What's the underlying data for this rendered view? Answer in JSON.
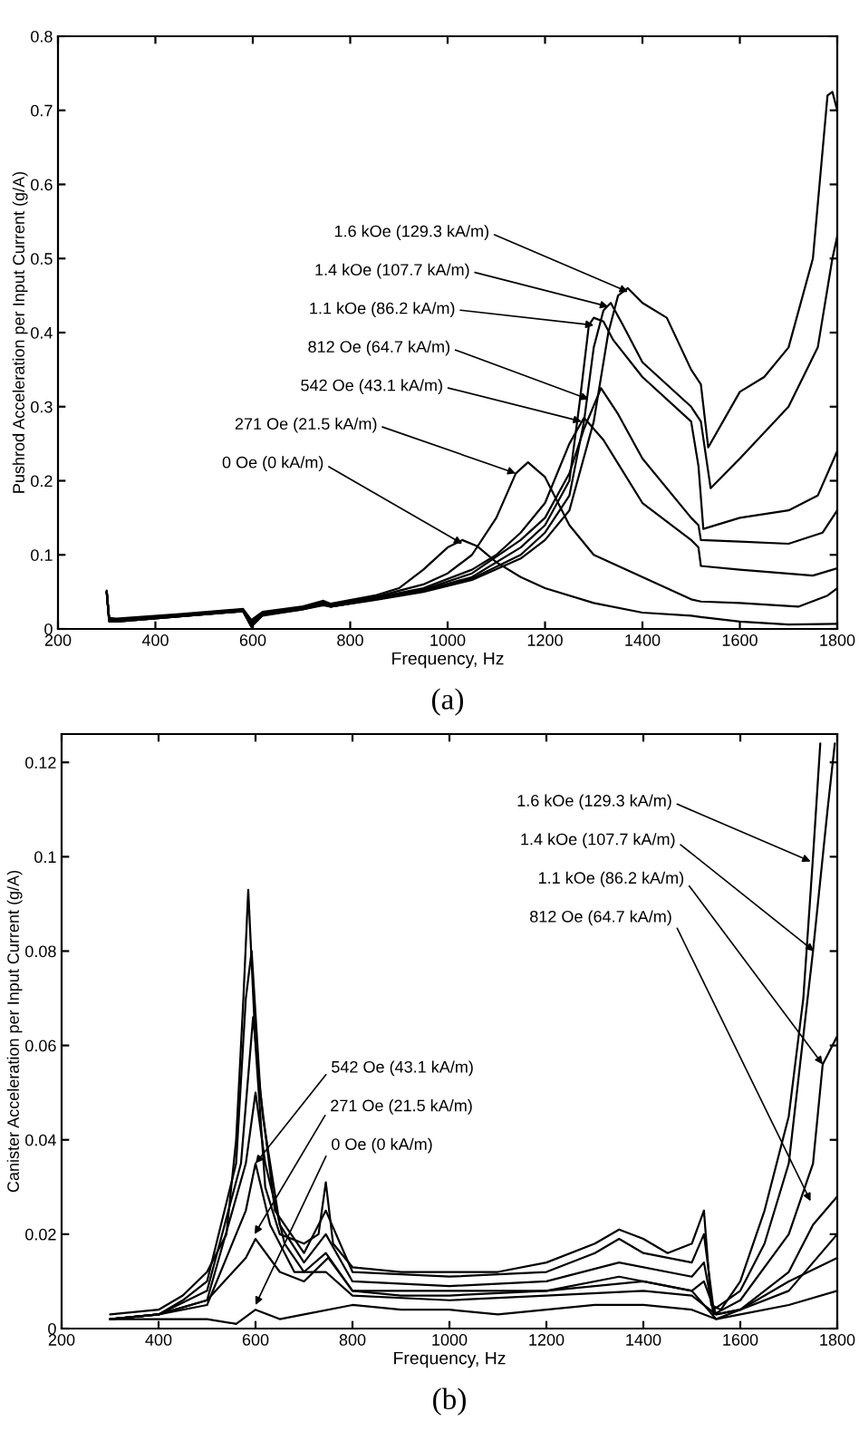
{
  "chart_data": [
    {
      "type": "line",
      "title": "(a)",
      "xlabel": "Frequency, Hz",
      "ylabel": "Pushrod Acceleration per Input Current (g/A)",
      "xlim": [
        200,
        1800
      ],
      "xticks": [
        200,
        400,
        600,
        800,
        1000,
        1200,
        1400,
        1600,
        1800
      ],
      "ylim": [
        0,
        0.8
      ],
      "yticks": [
        0,
        0.1,
        0.2,
        0.3,
        0.4,
        0.5,
        0.6,
        0.7,
        0.8
      ],
      "grid": false,
      "legend": false,
      "series": [
        {
          "color": "#000000",
          "x": [
            300,
            305,
            320,
            450,
            580,
            597,
            620,
            700,
            745,
            760,
            850,
            900,
            950,
            1000,
            1030,
            1060,
            1100,
            1150,
            1200,
            1300,
            1400,
            1500,
            1520,
            1600,
            1700,
            1800
          ],
          "values": [
            0.052,
            0.015,
            0.014,
            0.02,
            0.027,
            0.012,
            0.023,
            0.03,
            0.038,
            0.034,
            0.045,
            0.055,
            0.08,
            0.11,
            0.12,
            0.112,
            0.09,
            0.07,
            0.055,
            0.035,
            0.022,
            0.018,
            0.016,
            0.01,
            0.006,
            0.007
          ]
        },
        {
          "color": "#000000",
          "x": [
            300,
            305,
            320,
            450,
            580,
            597,
            620,
            700,
            745,
            760,
            850,
            950,
            1000,
            1050,
            1100,
            1140,
            1165,
            1200,
            1250,
            1300,
            1400,
            1500,
            1520,
            1600,
            1720,
            1780,
            1800
          ],
          "values": [
            0.05,
            0.014,
            0.013,
            0.019,
            0.026,
            0.009,
            0.022,
            0.029,
            0.036,
            0.033,
            0.043,
            0.06,
            0.075,
            0.1,
            0.15,
            0.21,
            0.225,
            0.205,
            0.14,
            0.1,
            0.07,
            0.04,
            0.037,
            0.035,
            0.03,
            0.045,
            0.055
          ]
        },
        {
          "color": "#000000",
          "x": [
            300,
            305,
            320,
            450,
            580,
            597,
            620,
            700,
            745,
            760,
            850,
            950,
            1050,
            1100,
            1150,
            1200,
            1250,
            1280,
            1320,
            1400,
            1500,
            1515,
            1520,
            1600,
            1750,
            1800
          ],
          "values": [
            0.05,
            0.013,
            0.012,
            0.018,
            0.025,
            0.007,
            0.021,
            0.028,
            0.035,
            0.032,
            0.042,
            0.055,
            0.08,
            0.1,
            0.13,
            0.17,
            0.25,
            0.285,
            0.255,
            0.17,
            0.12,
            0.11,
            0.085,
            0.08,
            0.072,
            0.082
          ]
        },
        {
          "color": "#000000",
          "x": [
            300,
            305,
            320,
            450,
            580,
            597,
            620,
            700,
            745,
            760,
            850,
            950,
            1050,
            1150,
            1200,
            1250,
            1280,
            1315,
            1350,
            1400,
            1500,
            1515,
            1520,
            1600,
            1700,
            1770,
            1800
          ],
          "values": [
            0.05,
            0.012,
            0.011,
            0.018,
            0.025,
            0.006,
            0.02,
            0.027,
            0.034,
            0.031,
            0.041,
            0.053,
            0.075,
            0.12,
            0.15,
            0.21,
            0.27,
            0.325,
            0.29,
            0.23,
            0.15,
            0.14,
            0.12,
            0.118,
            0.115,
            0.13,
            0.16
          ]
        },
        {
          "color": "#000000",
          "x": [
            300,
            305,
            320,
            450,
            580,
            597,
            620,
            700,
            745,
            760,
            850,
            950,
            1050,
            1150,
            1200,
            1250,
            1270,
            1290,
            1300,
            1320,
            1340,
            1400,
            1500,
            1515,
            1525,
            1600,
            1700,
            1760,
            1800
          ],
          "values": [
            0.05,
            0.011,
            0.01,
            0.017,
            0.024,
            0.004,
            0.019,
            0.027,
            0.033,
            0.03,
            0.04,
            0.052,
            0.07,
            0.11,
            0.14,
            0.2,
            0.3,
            0.41,
            0.42,
            0.415,
            0.39,
            0.34,
            0.28,
            0.22,
            0.135,
            0.15,
            0.16,
            0.18,
            0.24
          ]
        },
        {
          "color": "#000000",
          "x": [
            300,
            305,
            320,
            450,
            580,
            597,
            620,
            700,
            745,
            760,
            850,
            950,
            1050,
            1150,
            1200,
            1250,
            1280,
            1300,
            1320,
            1335,
            1360,
            1400,
            1450,
            1500,
            1520,
            1540,
            1600,
            1700,
            1760,
            1790,
            1800
          ],
          "values": [
            0.05,
            0.011,
            0.01,
            0.017,
            0.024,
            0.003,
            0.019,
            0.026,
            0.033,
            0.03,
            0.04,
            0.051,
            0.068,
            0.1,
            0.13,
            0.18,
            0.28,
            0.38,
            0.43,
            0.44,
            0.41,
            0.36,
            0.33,
            0.3,
            0.28,
            0.19,
            0.23,
            0.3,
            0.38,
            0.5,
            0.53
          ]
        },
        {
          "color": "#000000",
          "x": [
            300,
            305,
            320,
            450,
            580,
            597,
            620,
            700,
            745,
            760,
            850,
            950,
            1050,
            1150,
            1200,
            1250,
            1300,
            1330,
            1350,
            1370,
            1400,
            1450,
            1500,
            1520,
            1535,
            1600,
            1650,
            1700,
            1750,
            1780,
            1790,
            1800
          ],
          "values": [
            0.05,
            0.01,
            0.01,
            0.017,
            0.024,
            0.003,
            0.018,
            0.026,
            0.032,
            0.03,
            0.039,
            0.05,
            0.066,
            0.095,
            0.12,
            0.16,
            0.28,
            0.4,
            0.45,
            0.46,
            0.44,
            0.42,
            0.35,
            0.33,
            0.245,
            0.32,
            0.34,
            0.38,
            0.5,
            0.72,
            0.725,
            0.7
          ]
        }
      ],
      "annotations": [
        {
          "text": "1.6 kOe (129.3 kA/m)",
          "x": 1370,
          "y": 0.455
        },
        {
          "text": "1.4 kOe (107.7 kA/m)",
          "x": 1330,
          "y": 0.435
        },
        {
          "text": "1.1 kOe (86.2 kA/m)",
          "x": 1300,
          "y": 0.41
        },
        {
          "text": "812 Oe (64.7 kA/m)",
          "x": 1290,
          "y": 0.31
        },
        {
          "text": "542 Oe (43.1 kA/m)",
          "x": 1275,
          "y": 0.28
        },
        {
          "text": "271 Oe (21.5 kA/m)",
          "x": 1140,
          "y": 0.21
        },
        {
          "text": "0 Oe (0 kA/m)",
          "x": 1030,
          "y": 0.115
        }
      ]
    },
    {
      "type": "line",
      "title": "(b)",
      "xlabel": "Frequency, Hz",
      "ylabel": "Canister Acceleration per Input Current (g/A)",
      "xlim": [
        200,
        1800
      ],
      "xticks": [
        200,
        400,
        600,
        800,
        1000,
        1200,
        1400,
        1600,
        1800
      ],
      "ylim": [
        0,
        0.126
      ],
      "yticks": [
        0,
        0.02,
        0.04,
        0.06,
        0.08,
        0.1,
        0.12
      ],
      "grid": false,
      "legend": false,
      "series": [
        {
          "color": "#000000",
          "x": [
            300,
            400,
            500,
            560,
            600,
            650,
            700,
            800,
            900,
            1000,
            1100,
            1200,
            1300,
            1400,
            1500,
            1550,
            1600,
            1700,
            1800
          ],
          "values": [
            0.002,
            0.002,
            0.002,
            0.001,
            0.004,
            0.002,
            0.003,
            0.005,
            0.004,
            0.004,
            0.003,
            0.004,
            0.005,
            0.005,
            0.004,
            0.002,
            0.003,
            0.005,
            0.008
          ]
        },
        {
          "color": "#000000",
          "x": [
            300,
            400,
            500,
            580,
            600,
            650,
            700,
            750,
            800,
            900,
            1000,
            1200,
            1400,
            1500,
            1550,
            1600,
            1700,
            1800
          ],
          "values": [
            0.002,
            0.003,
            0.006,
            0.015,
            0.019,
            0.012,
            0.01,
            0.015,
            0.008,
            0.007,
            0.007,
            0.008,
            0.01,
            0.008,
            0.002,
            0.004,
            0.01,
            0.015
          ]
        },
        {
          "color": "#000000",
          "x": [
            300,
            400,
            500,
            580,
            600,
            630,
            680,
            745,
            800,
            1000,
            1200,
            1400,
            1500,
            1550,
            1600,
            1700,
            1800
          ],
          "values": [
            0.002,
            0.003,
            0.005,
            0.025,
            0.035,
            0.022,
            0.012,
            0.012,
            0.007,
            0.006,
            0.007,
            0.008,
            0.007,
            0.003,
            0.004,
            0.008,
            0.02
          ]
        },
        {
          "color": "#000000",
          "x": [
            300,
            400,
            500,
            580,
            600,
            620,
            660,
            700,
            745,
            800,
            1000,
            1200,
            1350,
            1500,
            1525,
            1550,
            1600,
            1700,
            1750,
            1800
          ],
          "values": [
            0.002,
            0.003,
            0.006,
            0.035,
            0.05,
            0.035,
            0.018,
            0.012,
            0.016,
            0.008,
            0.008,
            0.008,
            0.011,
            0.008,
            0.01,
            0.003,
            0.004,
            0.012,
            0.022,
            0.028
          ]
        },
        {
          "color": "#000000",
          "x": [
            300,
            400,
            500,
            570,
            595,
            615,
            650,
            700,
            745,
            800,
            1000,
            1200,
            1350,
            1500,
            1525,
            1545,
            1600,
            1700,
            1750,
            1770,
            1800
          ],
          "values": [
            0.002,
            0.003,
            0.008,
            0.035,
            0.066,
            0.045,
            0.022,
            0.014,
            0.02,
            0.01,
            0.009,
            0.01,
            0.014,
            0.011,
            0.014,
            0.003,
            0.006,
            0.02,
            0.035,
            0.056,
            0.062
          ]
        },
        {
          "color": "#000000",
          "x": [
            300,
            400,
            450,
            500,
            560,
            580,
            592,
            610,
            640,
            700,
            745,
            800,
            1000,
            1200,
            1300,
            1350,
            1400,
            1500,
            1525,
            1545,
            1600,
            1650,
            1700,
            1750,
            1780,
            1795
          ],
          "values": [
            0.002,
            0.003,
            0.006,
            0.01,
            0.035,
            0.07,
            0.08,
            0.05,
            0.025,
            0.016,
            0.025,
            0.012,
            0.011,
            0.012,
            0.016,
            0.019,
            0.016,
            0.014,
            0.02,
            0.004,
            0.008,
            0.018,
            0.035,
            0.08,
            0.11,
            0.124
          ]
        },
        {
          "color": "#000000",
          "x": [
            300,
            400,
            450,
            500,
            540,
            560,
            575,
            585,
            600,
            620,
            650,
            700,
            730,
            745,
            760,
            800,
            900,
            1000,
            1100,
            1200,
            1300,
            1350,
            1400,
            1450,
            1500,
            1525,
            1540,
            1560,
            1600,
            1650,
            1700,
            1730,
            1750,
            1765
          ],
          "values": [
            0.003,
            0.004,
            0.007,
            0.012,
            0.02,
            0.04,
            0.07,
            0.093,
            0.06,
            0.03,
            0.02,
            0.018,
            0.02,
            0.031,
            0.018,
            0.013,
            0.012,
            0.012,
            0.012,
            0.014,
            0.018,
            0.021,
            0.019,
            0.016,
            0.018,
            0.025,
            0.005,
            0.004,
            0.01,
            0.025,
            0.045,
            0.07,
            0.1,
            0.124
          ]
        }
      ],
      "annotations": [
        {
          "text": "1.6 kOe (129.3 kA/m)",
          "x": 1745,
          "y": 0.099
        },
        {
          "text": "1.4 kOe (107.7 kA/m)",
          "x": 1752,
          "y": 0.08
        },
        {
          "text": "1.1 kOe (86.2 kA/m)",
          "x": 1770,
          "y": 0.056
        },
        {
          "text": "812 Oe (64.7 kA/m)",
          "x": 1745,
          "y": 0.027
        },
        {
          "text": "542 Oe (43.1 kA/m)",
          "x": 600,
          "y": 0.035
        },
        {
          "text": "271 Oe (21.5 kA/m)",
          "x": 598,
          "y": 0.02
        },
        {
          "text": "0 Oe (0 kA/m)",
          "x": 600,
          "y": 0.005
        }
      ]
    }
  ]
}
